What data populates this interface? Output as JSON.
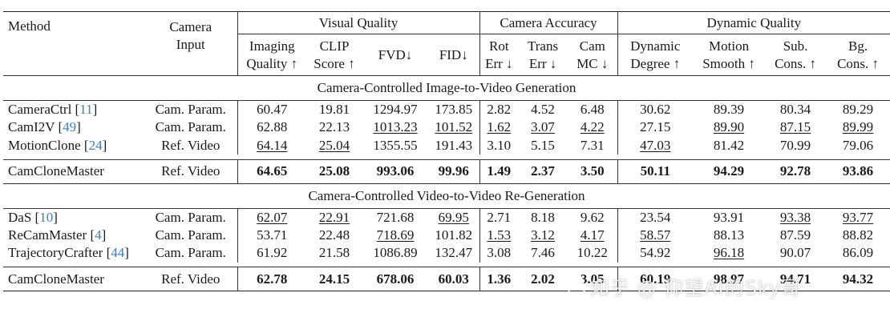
{
  "header": {
    "method": "Method",
    "camera_input": "Camera\nInput",
    "groups": [
      "Visual Quality",
      "Camera Accuracy",
      "Dynamic Quality"
    ],
    "columns": [
      "Imaging\nQuality ↑",
      "CLIP\nScore ↑",
      "FVD↓",
      "FID↓",
      "Rot\nErr ↓",
      "Trans\nErr ↓",
      "Cam\nMC ↓",
      "Dynamic\nDegree ↑",
      "Motion\nSmooth ↑",
      "Sub.\nCons. ↑",
      "Bg.\nCons. ↑"
    ]
  },
  "sections": [
    {
      "title": "Camera-Controlled Image-to-Video Generation",
      "rows": [
        {
          "method": "CameraCtrl",
          "cite": "11",
          "input": "Cam. Param.",
          "values": [
            "60.47",
            "19.81",
            "1294.97",
            "173.85",
            "2.82",
            "4.52",
            "6.48",
            "30.62",
            "89.39",
            "80.34",
            "89.29"
          ],
          "underline": []
        },
        {
          "method": "CamI2V",
          "cite": "49",
          "input": "Cam. Param.",
          "values": [
            "62.88",
            "22.13",
            "1013.23",
            "101.52",
            "1.62",
            "3.07",
            "4.22",
            "27.15",
            "89.90",
            "87.15",
            "89.99"
          ],
          "underline": [
            2,
            3,
            4,
            5,
            6,
            8,
            9,
            10
          ]
        },
        {
          "method": "MotionClone",
          "cite": "24",
          "input": "Ref. Video",
          "values": [
            "64.14",
            "25.04",
            "1355.55",
            "191.43",
            "3.10",
            "5.15",
            "7.31",
            "47.03",
            "81.42",
            "70.99",
            "79.06"
          ],
          "underline": [
            0,
            1,
            7
          ]
        }
      ],
      "ours": {
        "method": "CamCloneMaster",
        "input": "Ref. Video",
        "values": [
          "64.65",
          "25.08",
          "993.06",
          "99.96",
          "1.49",
          "2.37",
          "3.50",
          "50.11",
          "94.29",
          "92.78",
          "93.86"
        ]
      }
    },
    {
      "title": "Camera-Controlled Video-to-Video Re-Generation",
      "rows": [
        {
          "method": "DaS",
          "cite": "10",
          "input": "Cam. Param.",
          "values": [
            "62.07",
            "22.91",
            "721.68",
            "69.95",
            "2.71",
            "8.18",
            "9.62",
            "23.54",
            "93.91",
            "93.38",
            "93.77"
          ],
          "underline": [
            0,
            1,
            3,
            9,
            10
          ]
        },
        {
          "method": "ReCamMaster",
          "cite": "4",
          "input": "Cam. Param.",
          "values": [
            "53.71",
            "22.48",
            "718.69",
            "101.82",
            "1.53",
            "3.12",
            "4.17",
            "58.57",
            "88.13",
            "87.59",
            "88.82"
          ],
          "underline": [
            2,
            4,
            5,
            6,
            7
          ]
        },
        {
          "method": "TrajectoryCrafter",
          "cite": "44",
          "input": "Cam. Param.",
          "values": [
            "61.92",
            "21.58",
            "1086.89",
            "132.47",
            "3.08",
            "7.46",
            "10.22",
            "54.92",
            "96.18",
            "90.07",
            "86.09"
          ],
          "underline": [
            8
          ]
        }
      ],
      "ours": {
        "method": "CamCloneMaster",
        "input": "Ref. Video",
        "values": [
          "62.78",
          "24.15",
          "678.06",
          "60.03",
          "1.36",
          "2.02",
          "3.05",
          "60.19",
          "98.97",
          "94.71",
          "94.32"
        ]
      }
    }
  ],
  "watermark": "知乎 @ 仰望AI的Sky哥"
}
